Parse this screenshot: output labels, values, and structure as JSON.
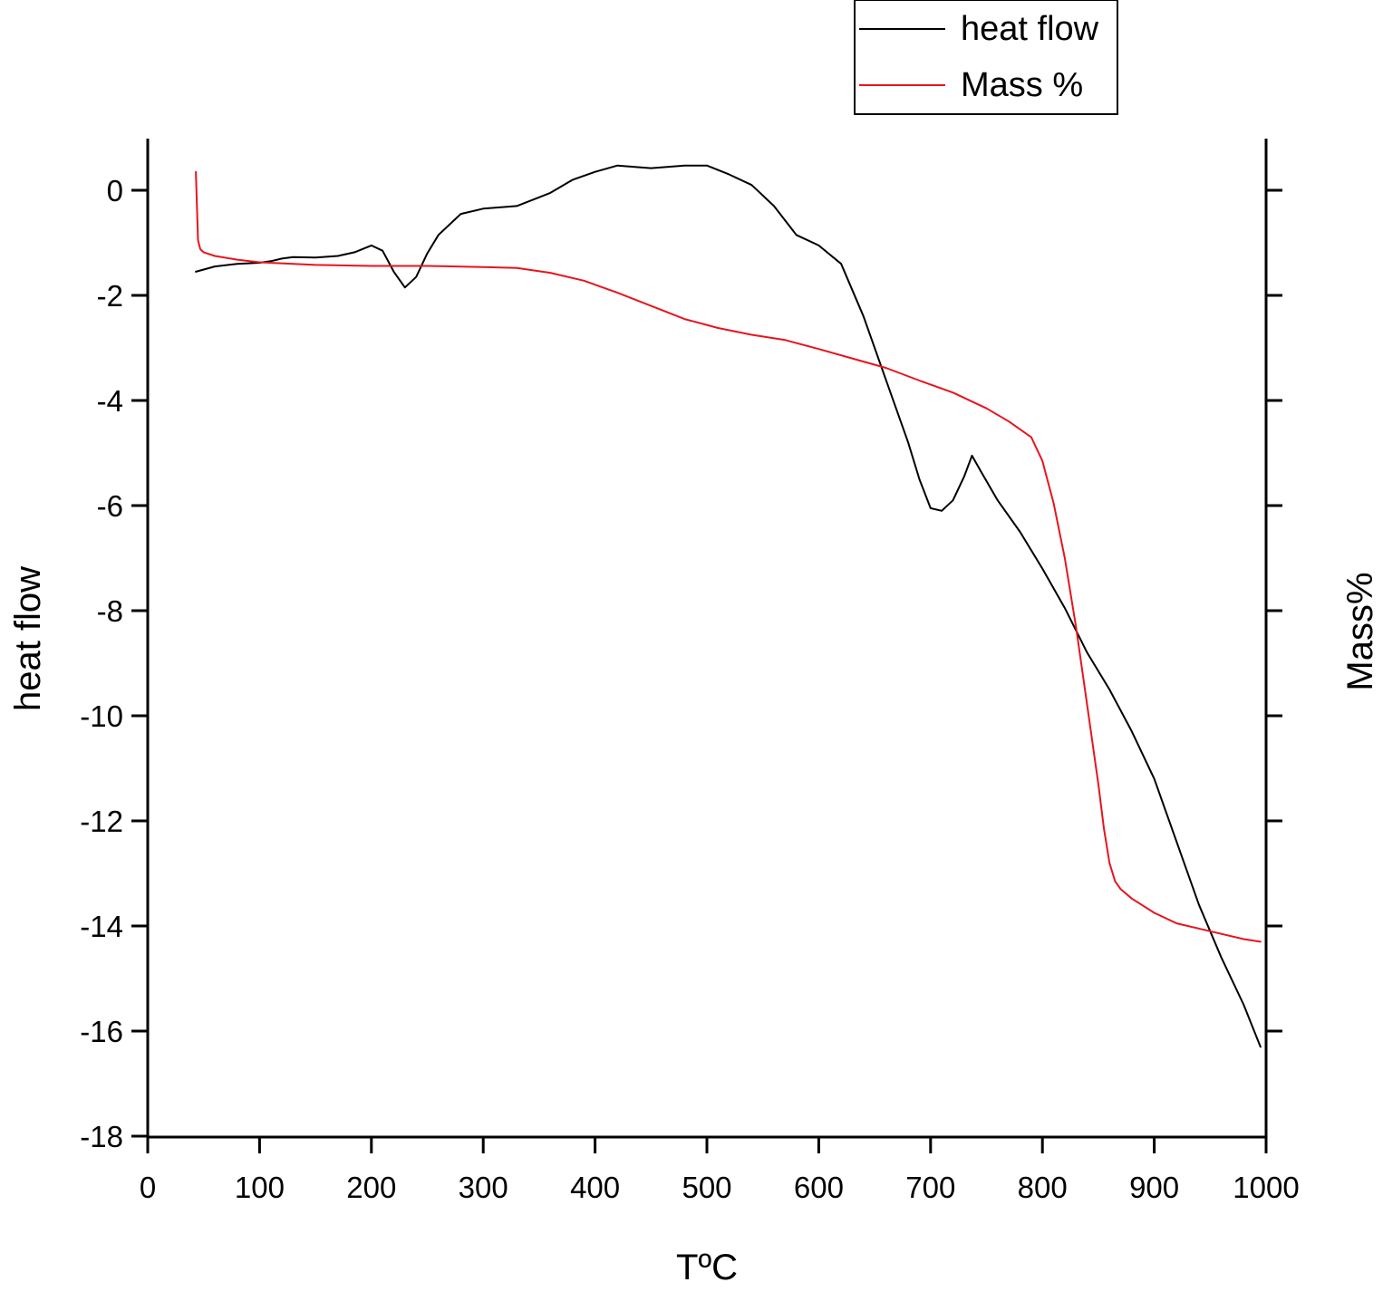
{
  "chart_data": {
    "type": "line",
    "xlabel": "TºC",
    "ylabel": "heat flow",
    "y2label": "Mass%",
    "xlim": [
      0,
      1000
    ],
    "ylim": [
      -18,
      1
    ],
    "xticks": [
      0,
      100,
      200,
      300,
      400,
      500,
      600,
      700,
      800,
      900,
      1000
    ],
    "yticks": [
      0,
      -2,
      -4,
      -6,
      -8,
      -10,
      -12,
      -14,
      -16,
      -18
    ],
    "y2ticks_unlabeled": 9,
    "legend_position": "top-right, above plot",
    "grid": false,
    "colors": {
      "heat_flow": "#000000",
      "mass": "#e8141c"
    },
    "series": [
      {
        "name": "heat flow",
        "axis": "left",
        "x": [
          43,
          60,
          80,
          100,
          110,
          120,
          130,
          150,
          170,
          185,
          200,
          210,
          220,
          230,
          240,
          250,
          260,
          280,
          300,
          330,
          360,
          380,
          400,
          420,
          450,
          480,
          500,
          520,
          540,
          560,
          580,
          600,
          620,
          640,
          660,
          680,
          690,
          700,
          710,
          720,
          730,
          737,
          745,
          760,
          780,
          800,
          820,
          840,
          860,
          880,
          900,
          920,
          940,
          960,
          980,
          995
        ],
        "y": [
          -1.55,
          -1.45,
          -1.4,
          -1.38,
          -1.35,
          -1.3,
          -1.27,
          -1.28,
          -1.25,
          -1.18,
          -1.05,
          -1.15,
          -1.55,
          -1.85,
          -1.65,
          -1.2,
          -0.85,
          -0.45,
          -0.35,
          -0.3,
          -0.05,
          0.2,
          0.35,
          0.47,
          0.42,
          0.47,
          0.47,
          0.3,
          0.1,
          -0.3,
          -0.85,
          -1.05,
          -1.4,
          -2.4,
          -3.6,
          -4.8,
          -5.5,
          -6.05,
          -6.1,
          -5.9,
          -5.45,
          -5.05,
          -5.35,
          -5.9,
          -6.5,
          -7.2,
          -7.95,
          -8.8,
          -9.5,
          -10.3,
          -11.2,
          -12.4,
          -13.6,
          -14.6,
          -15.5,
          -16.3
        ]
      },
      {
        "name": "Mass %",
        "axis": "right",
        "x": [
          43,
          44,
          45,
          47,
          50,
          60,
          80,
          100,
          150,
          200,
          250,
          300,
          330,
          360,
          390,
          420,
          450,
          480,
          510,
          540,
          570,
          600,
          630,
          660,
          690,
          720,
          750,
          770,
          790,
          800,
          810,
          820,
          830,
          840,
          850,
          855,
          860,
          865,
          870,
          880,
          900,
          920,
          950,
          980,
          995
        ],
        "y": [
          0.35,
          -0.3,
          -0.95,
          -1.12,
          -1.18,
          -1.25,
          -1.32,
          -1.37,
          -1.42,
          -1.44,
          -1.44,
          -1.46,
          -1.48,
          -1.57,
          -1.72,
          -1.95,
          -2.2,
          -2.45,
          -2.62,
          -2.75,
          -2.85,
          -3.02,
          -3.2,
          -3.38,
          -3.62,
          -3.85,
          -4.15,
          -4.4,
          -4.7,
          -5.15,
          -5.95,
          -7.0,
          -8.3,
          -9.8,
          -11.3,
          -12.15,
          -12.8,
          -13.15,
          -13.3,
          -13.48,
          -13.75,
          -13.95,
          -14.1,
          -14.25,
          -14.3
        ]
      }
    ]
  }
}
